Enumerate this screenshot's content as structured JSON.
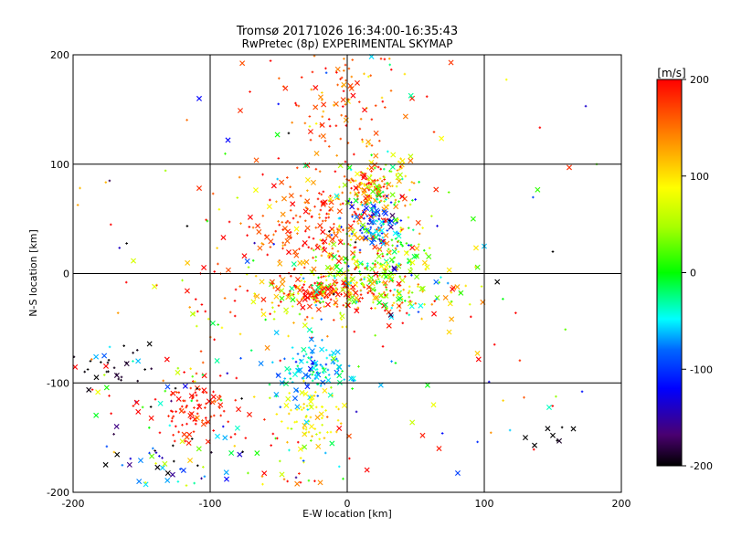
{
  "chart_data": {
    "type": "scatter",
    "title": "Tromsø 20171026 16:34:00-16:35:43",
    "subtitle": "RwPretec (8p) EXPERIMENTAL SKYMAP",
    "xlabel": "E-W location [km]",
    "ylabel": "N-S location [km]",
    "xlim": [
      -200,
      200
    ],
    "ylim": [
      -200,
      200
    ],
    "xticks": [
      "-200",
      "-100",
      "0",
      "100",
      "200"
    ],
    "yticks": [
      "-200",
      "-100",
      "0",
      "100",
      "200"
    ],
    "grid": true,
    "colorbar": {
      "label": "[m/s]",
      "range": [
        -200,
        200
      ],
      "ticks": [
        "200",
        "100",
        "0",
        "-100",
        "-200"
      ],
      "colormap": "black-purple-blue-cyan-green-yellow-orange-red"
    },
    "clusters": [
      {
        "x": 0,
        "y": 160,
        "sx": 22,
        "sy": 28,
        "n": 110,
        "v": 160,
        "vs": 35
      },
      {
        "x": 15,
        "y": 78,
        "sx": 10,
        "sy": 8,
        "n": 90,
        "v": 150,
        "vs": 40
      },
      {
        "x": 25,
        "y": 80,
        "sx": 15,
        "sy": 15,
        "n": 80,
        "v": 60,
        "vs": 60
      },
      {
        "x": -20,
        "y": 40,
        "sx": 35,
        "sy": 25,
        "n": 250,
        "v": 170,
        "vs": 35
      },
      {
        "x": 20,
        "y": 45,
        "sx": 12,
        "sy": 12,
        "n": 90,
        "v": -90,
        "vs": 40
      },
      {
        "x": 25,
        "y": 20,
        "sx": 20,
        "sy": 20,
        "n": 110,
        "v": 20,
        "vs": 50
      },
      {
        "x": 10,
        "y": 0,
        "sx": 25,
        "sy": 10,
        "n": 90,
        "v": 60,
        "vs": 50
      },
      {
        "x": -25,
        "y": -18,
        "sx": 12,
        "sy": 5,
        "n": 80,
        "v": 185,
        "vs": 15
      },
      {
        "x": 10,
        "y": -15,
        "sx": 25,
        "sy": 10,
        "n": 110,
        "v": 80,
        "vs": 100
      },
      {
        "x": 60,
        "y": -20,
        "sx": 25,
        "sy": 15,
        "n": 50,
        "v": 120,
        "vs": 100
      },
      {
        "x": -55,
        "y": -25,
        "sx": 40,
        "sy": 20,
        "n": 90,
        "v": 130,
        "vs": 90
      },
      {
        "x": -25,
        "y": -90,
        "sx": 15,
        "sy": 12,
        "n": 120,
        "v": -55,
        "vs": 30
      },
      {
        "x": -25,
        "y": -130,
        "sx": 10,
        "sy": 15,
        "n": 60,
        "v": 90,
        "vs": 20
      },
      {
        "x": -110,
        "y": -125,
        "sx": 15,
        "sy": 15,
        "n": 90,
        "v": 190,
        "vs": 12
      },
      {
        "x": -135,
        "y": -110,
        "sx": 35,
        "sy": 35,
        "n": 70,
        "v": 50,
        "vs": 200
      },
      {
        "x": -170,
        "y": -90,
        "sx": 20,
        "sy": 10,
        "n": 25,
        "v": -195,
        "vs": 5
      },
      {
        "x": -130,
        "y": -180,
        "sx": 20,
        "sy": 15,
        "n": 40,
        "v": -80,
        "vs": 100
      },
      {
        "x": -40,
        "y": -160,
        "sx": 25,
        "sy": 20,
        "n": 40,
        "v": 80,
        "vs": 100
      },
      {
        "x": 0,
        "y": 0,
        "sx": 100,
        "sy": 100,
        "n": 160,
        "v": 60,
        "vs": 150
      },
      {
        "x": 140,
        "y": -148,
        "sx": 15,
        "sy": 5,
        "n": 5,
        "v": -200,
        "vs": 5
      }
    ],
    "points": [
      {
        "x": -108,
        "y": 160,
        "v": -120,
        "m": "x"
      },
      {
        "x": -87,
        "y": 122,
        "v": -120,
        "m": "x"
      },
      {
        "x": -78,
        "y": 149,
        "v": 180,
        "m": "x"
      },
      {
        "x": 100,
        "y": 25,
        "v": -60,
        "m": "x"
      },
      {
        "x": 162,
        "y": 97,
        "v": 180,
        "m": "x"
      },
      {
        "x": 165,
        "y": -142,
        "v": -200,
        "m": "x"
      },
      {
        "x": 130,
        "y": -150,
        "v": -200,
        "m": "x"
      },
      {
        "x": 150,
        "y": -148,
        "v": -200,
        "m": "x"
      },
      {
        "x": 67,
        "y": -160,
        "v": 190,
        "m": "x"
      },
      {
        "x": 55,
        "y": -148,
        "v": 190,
        "m": "x"
      },
      {
        "x": 63,
        "y": -120,
        "v": 80,
        "m": "x"
      },
      {
        "x": -183,
        "y": -95,
        "v": -200,
        "m": "x"
      },
      {
        "x": -108,
        "y": 78,
        "v": 180,
        "m": "x"
      },
      {
        "x": 182,
        "y": 100,
        "v": 20,
        "m": "+"
      },
      {
        "x": 150,
        "y": 20,
        "v": -200,
        "m": "+"
      },
      {
        "x": -88,
        "y": -188,
        "v": -120,
        "m": "x"
      }
    ]
  }
}
